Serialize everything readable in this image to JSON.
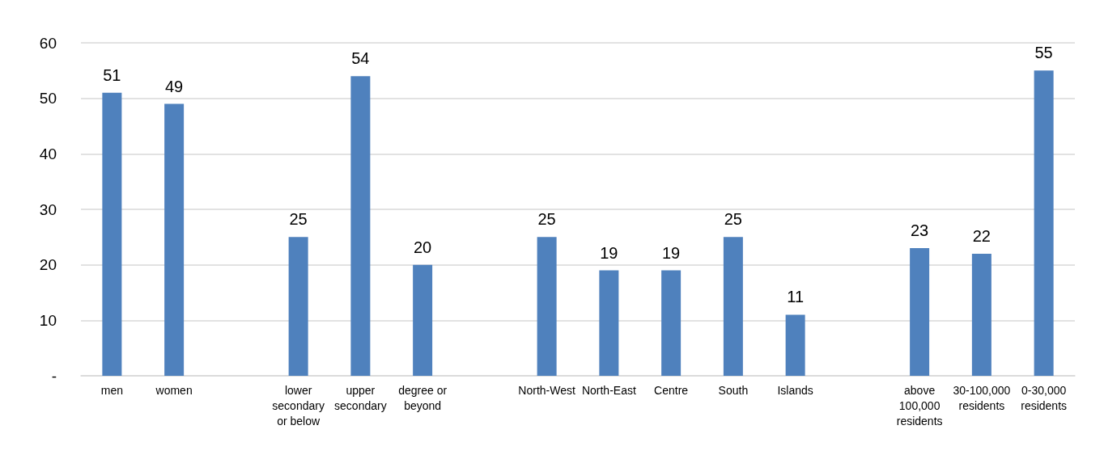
{
  "chart_data": {
    "type": "bar",
    "categories": [
      "men",
      "women",
      null,
      "lower secondary or below",
      "upper secondary",
      "degree or beyond",
      null,
      "North-West",
      "North-East",
      "Centre",
      "South",
      "Islands",
      null,
      "above 100,000 residents",
      "30-100,000 residents",
      "0-30,000 residents"
    ],
    "values": [
      51,
      49,
      null,
      25,
      54,
      20,
      null,
      25,
      19,
      19,
      25,
      11,
      null,
      23,
      22,
      55
    ],
    "color": "#4f81bd",
    "ylim": [
      0,
      60
    ],
    "yticks": [
      {
        "value": 0,
        "label": "-"
      },
      10,
      20,
      30,
      40,
      50,
      60
    ],
    "grid": "y",
    "data_labels": true
  }
}
